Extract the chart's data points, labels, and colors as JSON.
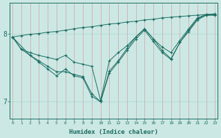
{
  "xlabel": "Humidex (Indice chaleur)",
  "background_color": "#cce8e4",
  "line_color": "#1a6b60",
  "grid_color_v": "#d4a0a0",
  "grid_color_h": "#a8d4d0",
  "x_ticks": [
    0,
    1,
    2,
    3,
    4,
    5,
    6,
    7,
    8,
    9,
    10,
    11,
    12,
    13,
    14,
    15,
    16,
    17,
    18,
    19,
    20,
    21,
    22,
    23
  ],
  "y_ticks": [
    7,
    8
  ],
  "ylim": [
    6.75,
    8.45
  ],
  "xlim": [
    -0.3,
    23.3
  ],
  "series": [
    {
      "x": [
        0,
        1,
        2,
        3,
        4,
        5,
        6,
        7,
        8,
        9,
        10,
        11,
        12,
        13,
        14,
        15,
        16,
        17,
        18,
        19,
        20,
        21,
        22,
        23
      ],
      "y": [
        7.95,
        7.97,
        7.99,
        8.0,
        8.02,
        8.03,
        8.05,
        8.07,
        8.09,
        8.1,
        8.12,
        8.14,
        8.15,
        8.17,
        8.18,
        8.2,
        8.21,
        8.23,
        8.24,
        8.25,
        8.26,
        8.27,
        8.28,
        8.29
      ]
    },
    {
      "x": [
        0,
        1,
        2,
        3,
        4,
        5,
        6,
        7,
        8,
        9,
        10,
        11,
        12,
        13,
        14,
        15,
        16,
        17,
        18,
        19,
        20,
        21,
        22,
        23
      ],
      "y": [
        7.95,
        7.77,
        7.72,
        7.68,
        7.65,
        7.62,
        7.68,
        7.58,
        7.55,
        7.52,
        7.02,
        7.6,
        7.72,
        7.82,
        7.95,
        8.07,
        7.92,
        7.8,
        7.72,
        7.9,
        8.07,
        8.23,
        8.28,
        8.28
      ]
    },
    {
      "x": [
        0,
        1,
        2,
        3,
        4,
        5,
        6,
        7,
        8,
        9,
        10,
        11,
        12,
        13,
        14,
        15,
        16,
        17,
        18,
        19,
        20,
        21,
        22,
        23
      ],
      "y": [
        7.95,
        7.77,
        7.68,
        7.6,
        7.52,
        7.44,
        7.44,
        7.4,
        7.37,
        7.12,
        7.0,
        7.45,
        7.6,
        7.78,
        7.95,
        8.07,
        7.92,
        7.75,
        7.63,
        7.87,
        8.05,
        8.22,
        8.27,
        8.27
      ]
    },
    {
      "x": [
        0,
        2,
        3,
        4,
        5,
        6,
        7,
        8,
        9,
        10,
        11,
        12,
        13,
        14,
        15,
        16,
        17,
        18,
        19,
        20,
        21,
        22,
        23
      ],
      "y": [
        7.95,
        7.68,
        7.58,
        7.48,
        7.38,
        7.48,
        7.38,
        7.35,
        7.08,
        7.0,
        7.42,
        7.58,
        7.75,
        7.92,
        8.05,
        7.88,
        7.72,
        7.62,
        7.87,
        8.03,
        8.2,
        8.27,
        8.27
      ]
    }
  ]
}
